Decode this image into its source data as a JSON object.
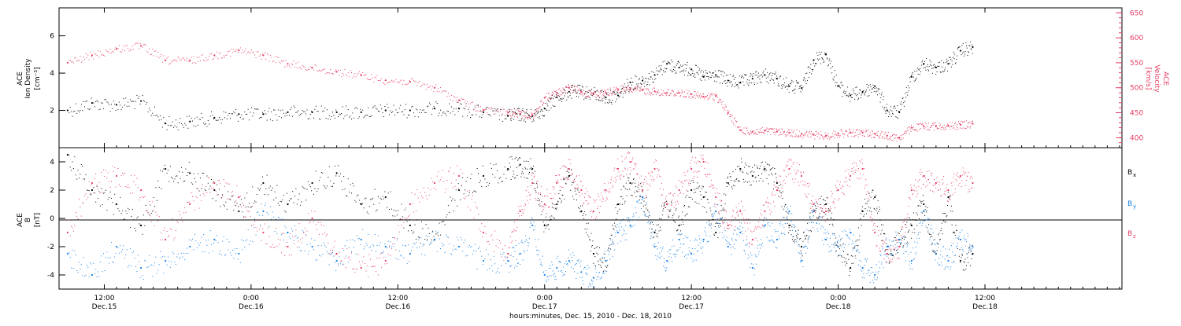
{
  "chart_data": [
    {
      "type": "scatter",
      "panel": "top",
      "ylabel_left_line1": "ACE",
      "ylabel_left_line2": "Ion Density",
      "ylabel_left_unit": "[cm⁻³]",
      "ylabel_right_line1": "ACE",
      "ylabel_right_line2": "Velocity",
      "ylabel_right_unit": "[km/s]",
      "ylim_left": [
        0,
        7.5
      ],
      "yticks_left": [
        2,
        4,
        6
      ],
      "ylim_right": [
        380,
        660
      ],
      "yticks_right": [
        400,
        450,
        500,
        550,
        600,
        650
      ],
      "xlim_hours": [
        -15.7,
        71.2
      ],
      "series": [
        {
          "color": "#000000",
          "axis": "left",
          "x": [
            -15,
            -13,
            -11,
            -9,
            -7,
            -5,
            -3,
            -1,
            1,
            3,
            5,
            7,
            9,
            11,
            13,
            15,
            17,
            19,
            21,
            22,
            23,
            24,
            25,
            26,
            27,
            28,
            29,
            30,
            31,
            32,
            33,
            34,
            35,
            36,
            37,
            38,
            39,
            40,
            41,
            42,
            43,
            44,
            45,
            46,
            47,
            48,
            49,
            50,
            51,
            52,
            53,
            54,
            55,
            56,
            57,
            58,
            59
          ],
          "y": [
            2.0,
            2.4,
            2.3,
            2.5,
            1.3,
            1.4,
            1.6,
            1.8,
            1.8,
            1.9,
            1.9,
            1.9,
            1.9,
            2.0,
            2.0,
            2.1,
            2.1,
            1.9,
            1.7,
            1.8,
            1.7,
            2.1,
            2.7,
            3.0,
            3.0,
            2.9,
            2.7,
            2.8,
            3.5,
            3.6,
            3.9,
            4.5,
            4.3,
            4.2,
            3.8,
            3.9,
            3.6,
            3.5,
            3.7,
            3.9,
            3.7,
            3.3,
            3.2,
            4.7,
            5.0,
            3.3,
            2.8,
            3.0,
            3.3,
            2.0,
            1.9,
            3.8,
            4.5,
            4.3,
            4.5,
            5.2,
            5.4
          ]
        },
        {
          "color": "#e63c62",
          "axis": "right",
          "x": [
            -15,
            -13,
            -11,
            -9,
            -7,
            -5,
            -3,
            -1,
            1,
            3,
            5,
            7,
            9,
            11,
            13,
            15,
            17,
            19,
            21,
            22,
            23,
            24,
            25,
            26,
            27,
            28,
            29,
            30,
            31,
            32,
            33,
            34,
            35,
            36,
            37,
            38,
            39,
            40,
            41,
            42,
            43,
            44,
            45,
            46,
            47,
            48,
            49,
            50,
            51,
            52,
            53,
            54,
            55,
            56,
            57,
            58,
            59
          ],
          "y": [
            550,
            565,
            578,
            584,
            555,
            555,
            565,
            575,
            565,
            548,
            540,
            532,
            525,
            515,
            512,
            500,
            475,
            455,
            450,
            448,
            445,
            480,
            490,
            500,
            492,
            488,
            490,
            497,
            497,
            495,
            493,
            490,
            490,
            487,
            482,
            484,
            450,
            415,
            412,
            414,
            412,
            410,
            408,
            406,
            404,
            409,
            410,
            410,
            408,
            404,
            400,
            420,
            423,
            424,
            424,
            426,
            428
          ]
        }
      ]
    },
    {
      "type": "scatter",
      "panel": "bottom",
      "ylabel_line1": "ACE",
      "ylabel_line2": "B",
      "ylabel_unit": "[nT]",
      "ylim": [
        -5,
        5
      ],
      "yticks": [
        -4,
        -2,
        0,
        2,
        4
      ],
      "xlim_hours": [
        -15.7,
        71.2
      ],
      "legend": [
        {
          "label": "B",
          "sub": "x",
          "color": "#000000"
        },
        {
          "label": "B",
          "sub": "y",
          "color": "#1580e6"
        },
        {
          "label": "B",
          "sub": "z",
          "color": "#e63c62"
        }
      ],
      "series": [
        {
          "color": "#000000",
          "x": [
            -15,
            -13,
            -11,
            -9,
            -7,
            -5,
            -3,
            -1,
            1,
            3,
            5,
            7,
            9,
            11,
            13,
            15,
            17,
            19,
            21,
            22,
            23,
            24,
            25,
            26,
            27,
            28,
            29,
            30,
            31,
            32,
            33,
            34,
            35,
            36,
            37,
            38,
            39,
            40,
            41,
            42,
            43,
            44,
            45,
            46,
            47,
            48,
            49,
            50,
            51,
            52,
            53,
            54,
            55,
            56,
            57,
            58,
            59
          ],
          "y": [
            4.5,
            2.0,
            1.0,
            -0.5,
            3.5,
            3.2,
            2.0,
            0.5,
            2.5,
            1.0,
            2.5,
            3.2,
            1.0,
            1.5,
            -0.5,
            -1.5,
            2.0,
            3.0,
            3.5,
            3.8,
            3.5,
            -0.5,
            1.0,
            3.0,
            0.5,
            -2.5,
            -3.0,
            1.0,
            2.5,
            1.5,
            -1.0,
            1.0,
            -0.5,
            2.0,
            1.5,
            -1.0,
            2.5,
            3.5,
            3.0,
            3.5,
            2.5,
            -0.5,
            -2.0,
            0.5,
            1.0,
            -2.0,
            -3.5,
            0.5,
            1.5,
            -2.5,
            -1.5,
            -0.5,
            1.0,
            -2.5,
            1.5,
            -3.0,
            -2.5
          ]
        },
        {
          "color": "#1580e6",
          "x": [
            -15,
            -13,
            -11,
            -9,
            -7,
            -5,
            -3,
            -1,
            1,
            3,
            5,
            7,
            9,
            11,
            13,
            15,
            17,
            19,
            21,
            22,
            23,
            24,
            25,
            26,
            27,
            28,
            29,
            30,
            31,
            32,
            33,
            34,
            35,
            36,
            37,
            38,
            39,
            40,
            41,
            42,
            43,
            44,
            45,
            46,
            47,
            48,
            49,
            50,
            51,
            52,
            53,
            54,
            55,
            56,
            57,
            58,
            59
          ],
          "y": [
            -2.5,
            -4.0,
            -2.0,
            -3.5,
            -3.0,
            -2.0,
            -1.5,
            -2.5,
            0.5,
            -1.0,
            -2.0,
            -3.0,
            -1.5,
            -2.0,
            -2.5,
            -1.5,
            -2.0,
            -3.0,
            -3.0,
            -2.5,
            -0.5,
            -4.0,
            -3.5,
            -3.0,
            -3.8,
            -4.2,
            -3.0,
            -1.0,
            -0.5,
            1.5,
            -2.0,
            -3.0,
            -1.5,
            -2.5,
            -1.5,
            0.5,
            -2.0,
            -1.0,
            -3.5,
            -0.5,
            -1.5,
            0.5,
            -3.0,
            0.5,
            -1.5,
            -2.0,
            -1.0,
            -3.5,
            -4.0,
            -2.0,
            -1.5,
            -3.0,
            0.5,
            -2.5,
            -3.0,
            -1.5,
            -2.0
          ]
        },
        {
          "color": "#e63c62",
          "x": [
            -15,
            -13,
            -11,
            -9,
            -7,
            -5,
            -3,
            -1,
            1,
            3,
            5,
            7,
            9,
            11,
            13,
            15,
            17,
            19,
            21,
            22,
            23,
            24,
            25,
            26,
            27,
            28,
            29,
            30,
            31,
            32,
            33,
            34,
            35,
            36,
            37,
            38,
            39,
            40,
            41,
            42,
            43,
            44,
            45,
            46,
            47,
            48,
            49,
            50,
            51,
            52,
            53,
            54,
            55,
            56,
            57,
            58,
            59
          ],
          "y": [
            -1.0,
            2.5,
            3.0,
            2.0,
            -1.5,
            1.0,
            2.5,
            1.5,
            -1.0,
            -2.0,
            0.0,
            -2.5,
            -3.5,
            -3.0,
            1.0,
            2.5,
            3.0,
            -1.0,
            -2.5,
            0.5,
            2.5,
            1.0,
            2.5,
            3.5,
            2.0,
            0.5,
            2.0,
            3.5,
            4.0,
            2.0,
            3.5,
            1.0,
            2.0,
            3.5,
            4.0,
            1.5,
            -0.5,
            0.5,
            -1.5,
            0.5,
            2.0,
            3.5,
            3.0,
            1.0,
            0.5,
            2.0,
            3.0,
            3.5,
            -1.0,
            -2.5,
            -2.0,
            2.0,
            3.0,
            2.5,
            2.0,
            3.0,
            2.5
          ]
        }
      ]
    }
  ],
  "xaxis": {
    "ticks": [
      {
        "hours": -12,
        "time": "12:00",
        "date": "Dec.15"
      },
      {
        "hours": 0,
        "time": "0:00",
        "date": "Dec.16"
      },
      {
        "hours": 12,
        "time": "12:00",
        "date": "Dec.16"
      },
      {
        "hours": 24,
        "time": "0:00",
        "date": "Dec.17"
      },
      {
        "hours": 36,
        "time": "12:00",
        "date": "Dec.17"
      },
      {
        "hours": 48,
        "time": "0:00",
        "date": "Dec.18"
      },
      {
        "hours": 60,
        "time": "12:00",
        "date": "Dec.18"
      }
    ],
    "label": "hours:minutes, Dec. 15, 2010 - Dec. 18, 2010"
  }
}
